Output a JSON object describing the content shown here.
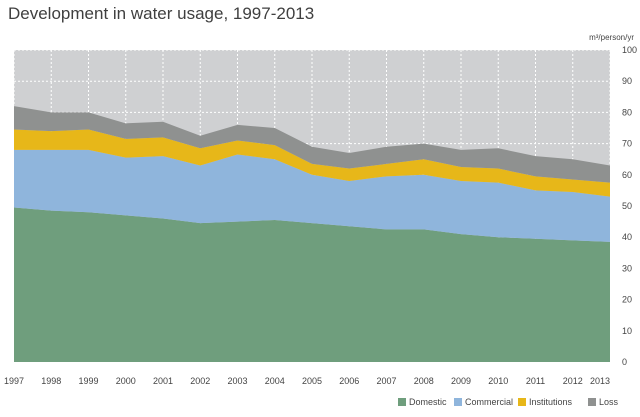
{
  "chart_data": {
    "type": "area",
    "stacked": true,
    "title": "Development in water usage, 1997-2013",
    "ylabel": "m³/person/yr",
    "xlabel": "",
    "ylim": [
      0,
      100
    ],
    "yticks": [
      0,
      10,
      20,
      30,
      40,
      50,
      60,
      70,
      80,
      90,
      100
    ],
    "x": [
      "1997",
      "1998",
      "1999",
      "2000",
      "2001",
      "2002",
      "2003",
      "2004",
      "2005",
      "2006",
      "2007",
      "2008",
      "2009",
      "2010",
      "2011",
      "2012",
      "2013"
    ],
    "series": [
      {
        "name": "Domestic",
        "color": "#6f9e7d",
        "values": [
          49.5,
          48.5,
          48,
          47,
          46,
          44.5,
          45,
          45.5,
          44.5,
          43.5,
          42.5,
          42.5,
          41,
          40,
          39.5,
          39,
          38.5
        ]
      },
      {
        "name": "Commercial",
        "color": "#8fb5dc",
        "values": [
          18.5,
          19.5,
          20,
          18.5,
          20,
          18.5,
          21.5,
          19.5,
          15.5,
          14.5,
          17,
          17.5,
          17,
          17.5,
          15.5,
          15.5,
          14.5
        ]
      },
      {
        "name": "Institutions",
        "color": "#e7b719",
        "values": [
          6.5,
          6,
          6.5,
          6,
          6,
          5.5,
          4.5,
          4.5,
          3.5,
          4,
          4,
          5,
          4.5,
          4.5,
          4.5,
          4,
          4.5
        ]
      },
      {
        "name": "Loss",
        "color": "#8f9190",
        "values": [
          7.5,
          6,
          5.5,
          5,
          5,
          4,
          5,
          5.5,
          5.5,
          5,
          5.5,
          5,
          5.5,
          6.5,
          6.5,
          6.5,
          5.5
        ]
      }
    ],
    "grid": true,
    "legend_position": "bottom-right",
    "plot_background": "#cfd0d2",
    "grid_color": "#ffffff"
  }
}
